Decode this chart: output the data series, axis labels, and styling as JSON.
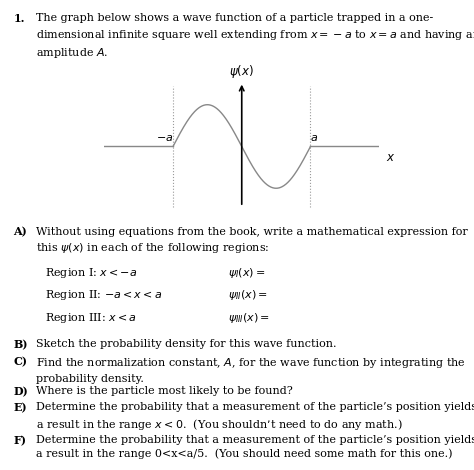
{
  "bg_color": "#ffffff",
  "text_color": "#000000",
  "wave_color": "#888888",
  "dashed_color": "#888888",
  "fontsize_main": 8.0,
  "fontsize_label": 8.5,
  "wave_xlim": [
    -2.2,
    2.4
  ],
  "wave_ylim": [
    -1.5,
    1.6
  ]
}
